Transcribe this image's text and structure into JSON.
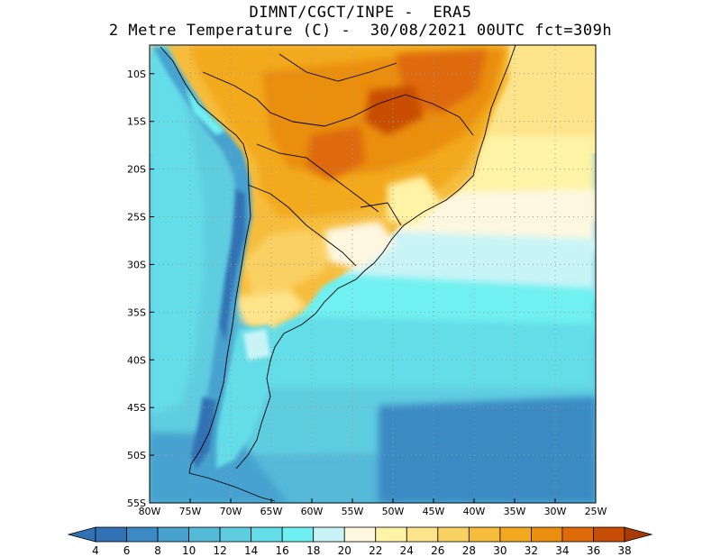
{
  "title": {
    "line1": "DIMNT/CGCT/INPE -  ERA5",
    "line2": "2 Metre Temperature (C) -  30/08/2021 00UTC fct=309h"
  },
  "axes": {
    "lon_labels": [
      "80W",
      "75W",
      "70W",
      "65W",
      "60W",
      "55W",
      "50W",
      "45W",
      "40W",
      "35W",
      "30W",
      "25W"
    ],
    "lat_labels": [
      "10S",
      "15S",
      "20S",
      "25S",
      "30S",
      "35S",
      "40S",
      "45S",
      "50S",
      "55S"
    ],
    "lon_range": [
      -80,
      -25
    ],
    "lat_range": [
      -55,
      -7
    ],
    "gridlines": "dotted"
  },
  "colorbar": {
    "labels": [
      "4",
      "6",
      "8",
      "10",
      "12",
      "14",
      "16",
      "18",
      "20",
      "22",
      "24",
      "26",
      "28",
      "30",
      "32",
      "34",
      "36",
      "38"
    ],
    "colors": [
      "#3172b4",
      "#3b8ac4",
      "#47a2cf",
      "#55b9d8",
      "#5fcde0",
      "#63dde8",
      "#6ff0f0",
      "#c9f4f6",
      "#fdf7e0",
      "#fff3a6",
      "#fde38a",
      "#f9d163",
      "#f6bd3c",
      "#f2a91f",
      "#ea8e0e",
      "#de6b07",
      "#c84d04",
      "#a83a06"
    ]
  },
  "chart_data": {
    "type": "map",
    "variable": "2 Metre Temperature (C)",
    "units": "C",
    "color_levels": [
      4,
      6,
      8,
      10,
      12,
      14,
      16,
      18,
      20,
      22,
      24,
      26,
      28,
      30,
      32,
      34,
      36,
      38
    ]
  }
}
